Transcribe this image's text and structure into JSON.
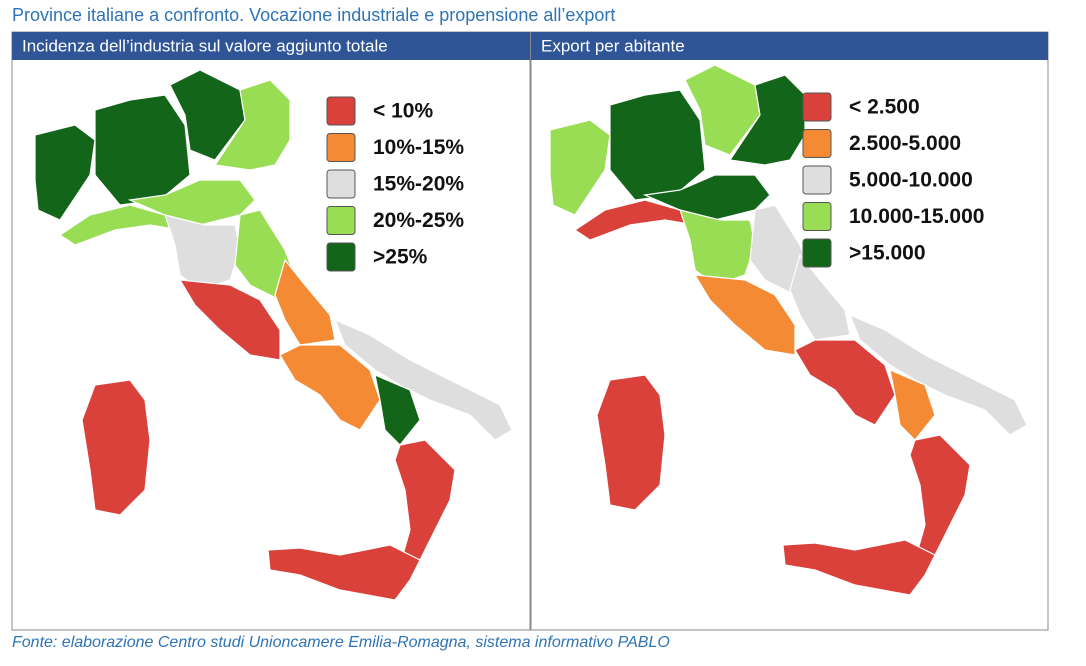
{
  "title": "Province italiane a confronto. Vocazione industriale e propensione all’export",
  "maps": [
    {
      "title": "Incidenza dell’industria sul valore aggiunto totale",
      "legend": [
        {
          "label": "< 10%",
          "color": "#d9413a"
        },
        {
          "label": "10%-15%",
          "color": "#f58a35"
        },
        {
          "label": "15%-20%",
          "color": "#dedede"
        },
        {
          "label": "20%-25%",
          "color": "#99dd55"
        },
        {
          "label": ">25%",
          "color": "#13651a"
        }
      ]
    },
    {
      "title": "Export per abitante",
      "legend": [
        {
          "label": "< 2.500",
          "color": "#d9413a"
        },
        {
          "label": "2.500-5.000",
          "color": "#f58a35"
        },
        {
          "label": "5.000-10.000",
          "color": "#dedede"
        },
        {
          "label": "10.000-15.000",
          "color": "#99dd55"
        },
        {
          "label": ">15.000",
          "color": "#13651a"
        }
      ]
    }
  ],
  "source": "Fonte: elaborazione Centro studi Unioncamere Emilia-Romagna, sistema informativo PABLO"
}
